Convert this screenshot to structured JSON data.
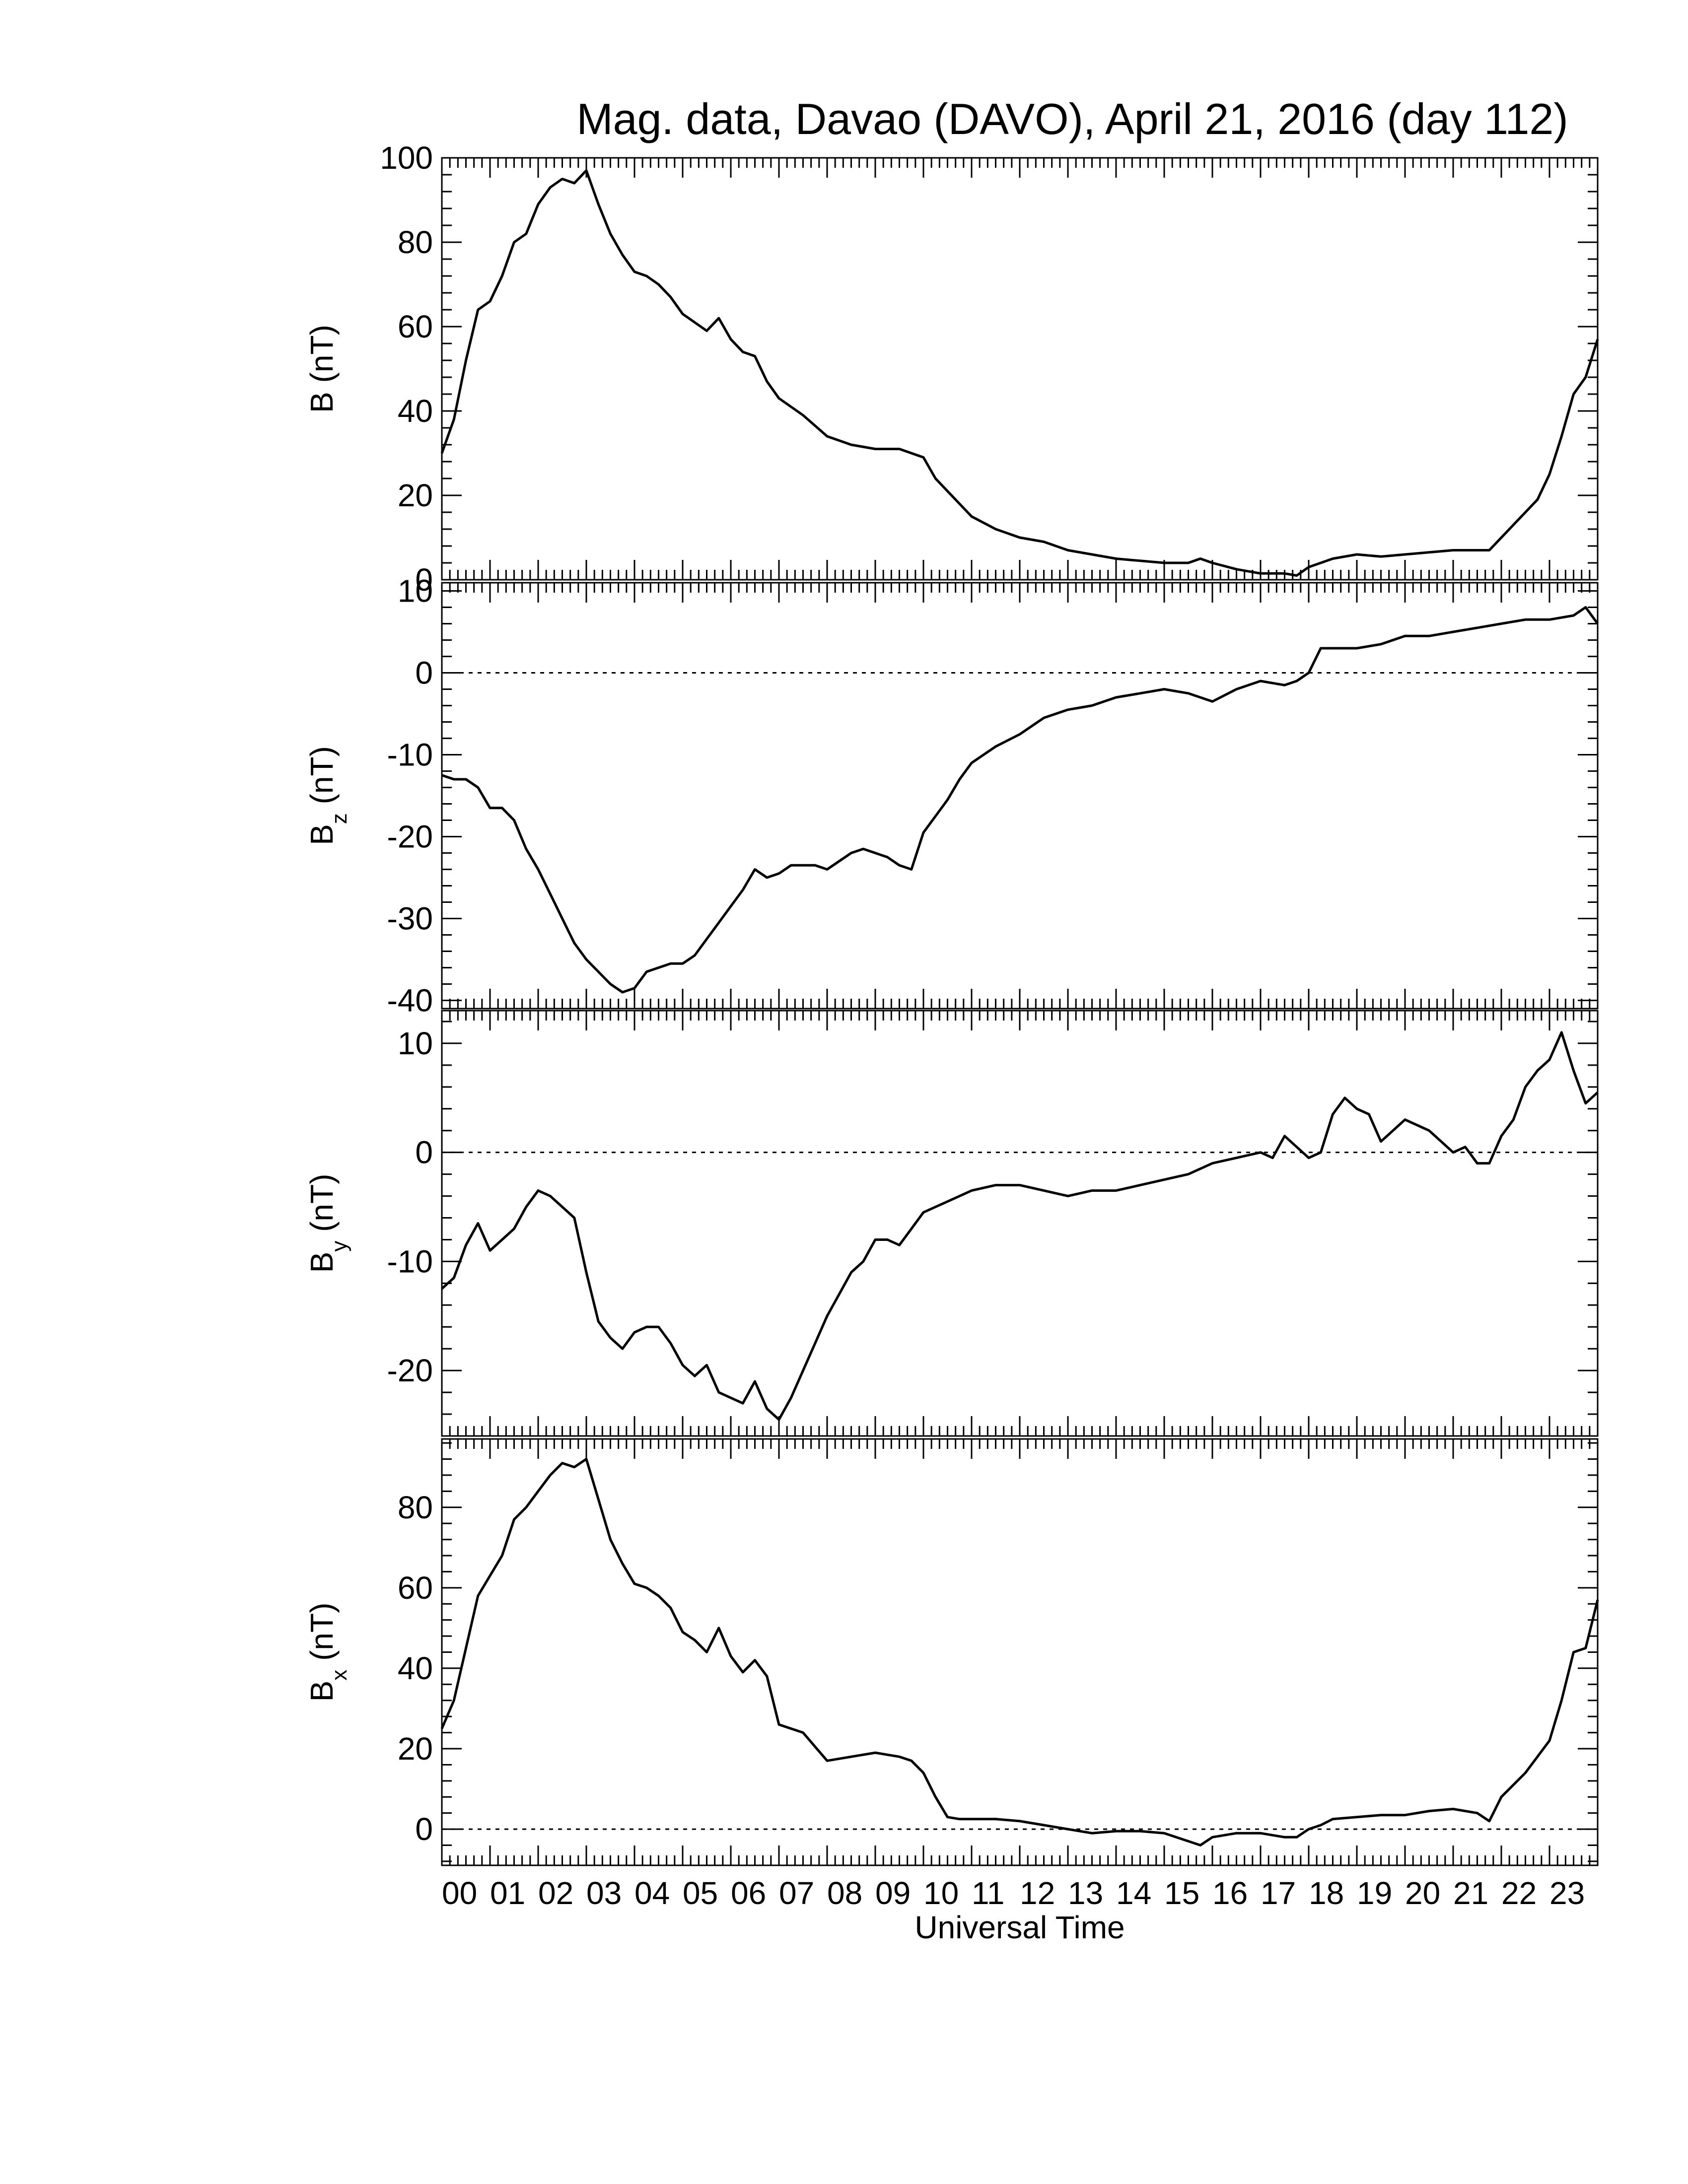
{
  "title": "Mag. data, Davao (DAVO), April 21, 2016 (day 112)",
  "xlabel": "Universal Time",
  "colors": {
    "line": "#000000",
    "axis": "#000000",
    "zero_line": "#000000",
    "background": "#ffffff"
  },
  "chart_data": [
    {
      "type": "line",
      "panel": "B",
      "ylabel_main": "B (nT)",
      "ylabel_sub": "",
      "ylim": [
        0,
        100
      ],
      "yticks": [
        0,
        20,
        40,
        60,
        80,
        100
      ],
      "xlim": [
        0,
        24
      ],
      "zero_line": true,
      "x": [
        0,
        0.25,
        0.5,
        0.75,
        1,
        1.25,
        1.5,
        1.75,
        2,
        2.25,
        2.5,
        2.75,
        3,
        3.25,
        3.5,
        3.75,
        4,
        4.25,
        4.5,
        4.75,
        5,
        5.25,
        5.5,
        5.75,
        6,
        6.25,
        6.5,
        6.75,
        7,
        7.5,
        8,
        8.5,
        9,
        9.5,
        9.75,
        10,
        10.25,
        10.5,
        11,
        11.5,
        12,
        12.5,
        13,
        13.5,
        14,
        14.5,
        15,
        15.5,
        15.75,
        16,
        16.5,
        17,
        17.5,
        17.75,
        18,
        18.25,
        18.5,
        19,
        19.5,
        20,
        20.5,
        21,
        21.5,
        21.75,
        22,
        22.5,
        22.75,
        23,
        23.25,
        23.5,
        23.75,
        24
      ],
      "y": [
        30,
        38,
        52,
        64,
        66,
        72,
        80,
        82,
        89,
        93,
        95,
        94,
        97,
        89,
        82,
        77,
        73,
        72,
        70,
        67,
        63,
        61,
        59,
        62,
        57,
        54,
        53,
        47,
        43,
        39,
        34,
        32,
        31,
        31,
        30,
        29,
        24,
        21,
        15,
        12,
        10,
        9,
        7,
        6,
        5,
        4.5,
        4,
        4,
        5,
        4,
        2.5,
        1.5,
        1.5,
        1,
        3,
        4,
        5,
        6,
        5.5,
        6,
        6.5,
        7,
        7,
        7,
        10,
        16,
        19,
        25,
        34,
        44,
        48,
        57
      ]
    },
    {
      "type": "line",
      "panel": "Bz",
      "ylabel_main": "B",
      "ylabel_sub": "z",
      "ylabel_unit": "(nT)",
      "ylim": [
        -41,
        11
      ],
      "yticks": [
        -40,
        -30,
        -20,
        -10,
        0,
        10
      ],
      "xlim": [
        0,
        24
      ],
      "zero_line": true,
      "x": [
        0,
        0.25,
        0.5,
        0.75,
        1,
        1.25,
        1.5,
        1.75,
        2,
        2.25,
        2.5,
        2.75,
        3,
        3.25,
        3.5,
        3.75,
        4,
        4.25,
        4.5,
        4.75,
        5,
        5.25,
        5.5,
        5.75,
        6,
        6.25,
        6.5,
        6.75,
        7,
        7.25,
        7.5,
        7.75,
        8,
        8.25,
        8.5,
        8.75,
        9,
        9.25,
        9.5,
        9.75,
        10,
        10.25,
        10.5,
        10.75,
        11,
        11.5,
        12,
        12.5,
        13,
        13.5,
        14,
        14.5,
        15,
        15.5,
        15.75,
        16,
        16.5,
        17,
        17.5,
        17.75,
        18,
        18.25,
        18.5,
        19,
        19.5,
        20,
        20.5,
        21,
        21.5,
        22,
        22.5,
        23,
        23.5,
        23.75,
        24
      ],
      "y": [
        -12.5,
        -13,
        -13,
        -14,
        -16.5,
        -16.5,
        -18,
        -21.5,
        -24,
        -27,
        -30,
        -33,
        -35,
        -36.5,
        -38,
        -39,
        -38.5,
        -36.5,
        -36,
        -35.5,
        -35.5,
        -34.5,
        -32.5,
        -30.5,
        -28.5,
        -26.5,
        -24,
        -25,
        -24.5,
        -23.5,
        -23.5,
        -23.5,
        -24,
        -23,
        -22,
        -21.5,
        -22,
        -22.5,
        -23.5,
        -24,
        -19.5,
        -17.5,
        -15.5,
        -13,
        -11,
        -9,
        -7.5,
        -5.5,
        -4.5,
        -4,
        -3,
        -2.5,
        -2,
        -2.5,
        -3,
        -3.5,
        -2,
        -1,
        -1.5,
        -1,
        0,
        3,
        3,
        3,
        3.5,
        4.5,
        4.5,
        5,
        5.5,
        6,
        6.5,
        6.5,
        7,
        8,
        6
      ]
    },
    {
      "type": "line",
      "panel": "By",
      "ylabel_main": "B",
      "ylabel_sub": "y",
      "ylabel_unit": "(nT)",
      "ylim": [
        -26,
        13
      ],
      "yticks": [
        -20,
        -10,
        0,
        10
      ],
      "xlim": [
        0,
        24
      ],
      "zero_line": true,
      "x": [
        0,
        0.25,
        0.5,
        0.75,
        1,
        1.25,
        1.5,
        1.75,
        2,
        2.25,
        2.5,
        2.75,
        3,
        3.25,
        3.5,
        3.75,
        4,
        4.25,
        4.5,
        4.75,
        5,
        5.25,
        5.5,
        5.75,
        6,
        6.25,
        6.5,
        6.75,
        7,
        7.25,
        7.5,
        7.75,
        8,
        8.25,
        8.5,
        8.75,
        9,
        9.25,
        9.5,
        9.75,
        10,
        10.25,
        10.5,
        10.75,
        11,
        11.5,
        12,
        12.5,
        13,
        13.5,
        14,
        14.5,
        15,
        15.5,
        16,
        16.5,
        17,
        17.25,
        17.5,
        17.75,
        18,
        18.25,
        18.5,
        18.75,
        19,
        19.25,
        19.5,
        19.75,
        20,
        20.25,
        20.5,
        20.75,
        21,
        21.25,
        21.5,
        21.75,
        22,
        22.25,
        22.5,
        22.75,
        23,
        23.25,
        23.5,
        23.75,
        24
      ],
      "y": [
        -12.5,
        -11.5,
        -8.5,
        -6.5,
        -9,
        -8,
        -7,
        -5,
        -3.5,
        -4,
        -5,
        -6,
        -11,
        -15.5,
        -17,
        -18,
        -16.5,
        -16,
        -16,
        -17.5,
        -19.5,
        -20.5,
        -19.5,
        -22,
        -22.5,
        -23,
        -21,
        -23.5,
        -24.5,
        -22.5,
        -20,
        -17.5,
        -15,
        -13,
        -11,
        -10,
        -8,
        -8,
        -8.5,
        -7,
        -5.5,
        -5,
        -4.5,
        -4,
        -3.5,
        -3,
        -3,
        -3.5,
        -4,
        -3.5,
        -3.5,
        -3,
        -2.5,
        -2,
        -1,
        -0.5,
        0,
        -0.5,
        1.5,
        0.5,
        -0.5,
        0,
        3.5,
        5,
        4,
        3.5,
        1,
        2,
        3,
        2.5,
        2,
        1,
        0,
        0.5,
        -1,
        -1,
        1.5,
        3,
        6,
        7.5,
        8.5,
        11,
        7.5,
        4.5,
        5.5
      ]
    },
    {
      "type": "line",
      "panel": "Bx",
      "ylabel_main": "B",
      "ylabel_sub": "x",
      "ylabel_unit": "(nT)",
      "ylim": [
        -9,
        97
      ],
      "yticks": [
        0,
        20,
        40,
        60,
        80
      ],
      "xlim": [
        0,
        24
      ],
      "zero_line": true,
      "x": [
        0,
        0.25,
        0.5,
        0.75,
        1,
        1.25,
        1.5,
        1.75,
        2,
        2.25,
        2.5,
        2.75,
        3,
        3.25,
        3.5,
        3.75,
        4,
        4.25,
        4.5,
        4.75,
        5,
        5.25,
        5.5,
        5.75,
        6,
        6.25,
        6.5,
        6.75,
        7,
        7.5,
        8,
        8.5,
        9,
        9.5,
        9.75,
        10,
        10.25,
        10.5,
        10.75,
        11,
        11.5,
        12,
        12.5,
        13,
        13.5,
        14,
        14.5,
        15,
        15.5,
        15.75,
        16,
        16.5,
        17,
        17.5,
        17.75,
        18,
        18.25,
        18.5,
        19,
        19.5,
        20,
        20.5,
        21,
        21.5,
        21.75,
        22,
        22.5,
        23,
        23.25,
        23.5,
        23.75,
        24
      ],
      "y": [
        25,
        32,
        45,
        58,
        63,
        68,
        77,
        80,
        84,
        88,
        91,
        90,
        92,
        82,
        72,
        66,
        61,
        60,
        58,
        55,
        49,
        47,
        44,
        50,
        43,
        39,
        42,
        38,
        26,
        24,
        17,
        18,
        19,
        18,
        17,
        14,
        8,
        3,
        2.5,
        2.5,
        2.5,
        2,
        1,
        0,
        -1,
        -0.5,
        -0.5,
        -1,
        -3,
        -4,
        -2,
        -1,
        -1,
        -2,
        -2,
        0,
        1,
        2.5,
        3,
        3.5,
        3.5,
        4.5,
        5,
        4,
        2,
        8,
        14,
        22,
        32,
        44,
        45,
        57
      ]
    }
  ],
  "xtick_labels": [
    "00",
    "01",
    "02",
    "03",
    "04",
    "05",
    "06",
    "07",
    "08",
    "09",
    "10",
    "11",
    "12",
    "13",
    "14",
    "15",
    "16",
    "17",
    "18",
    "19",
    "20",
    "21",
    "22",
    "23"
  ]
}
